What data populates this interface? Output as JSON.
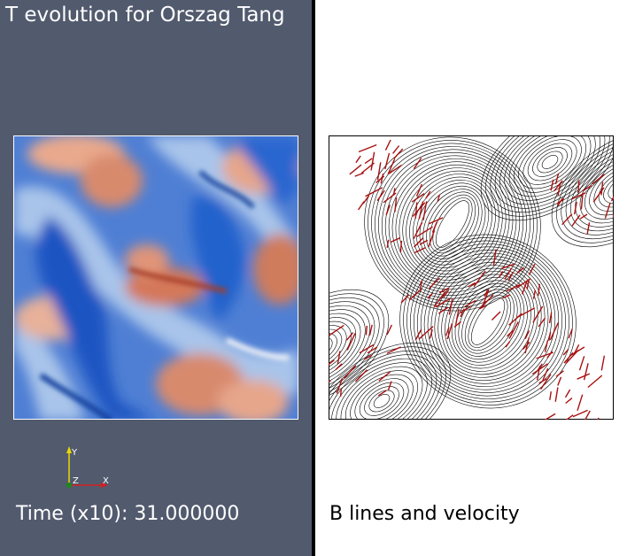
{
  "left_view": {
    "title": "T evolution for Orszag Tang",
    "time_label": "Time (x10): 31.000000",
    "axes": {
      "y": "Y",
      "z": "Z",
      "x": "X"
    },
    "colors": {
      "background": "#525a6e",
      "cold": "#1f5fc8",
      "mid": "#dce4f0",
      "warm": "#d4856a"
    }
  },
  "right_view": {
    "label": "B lines and velocity",
    "colors": {
      "lines": "#000000",
      "vectors": "#a81010"
    }
  }
}
